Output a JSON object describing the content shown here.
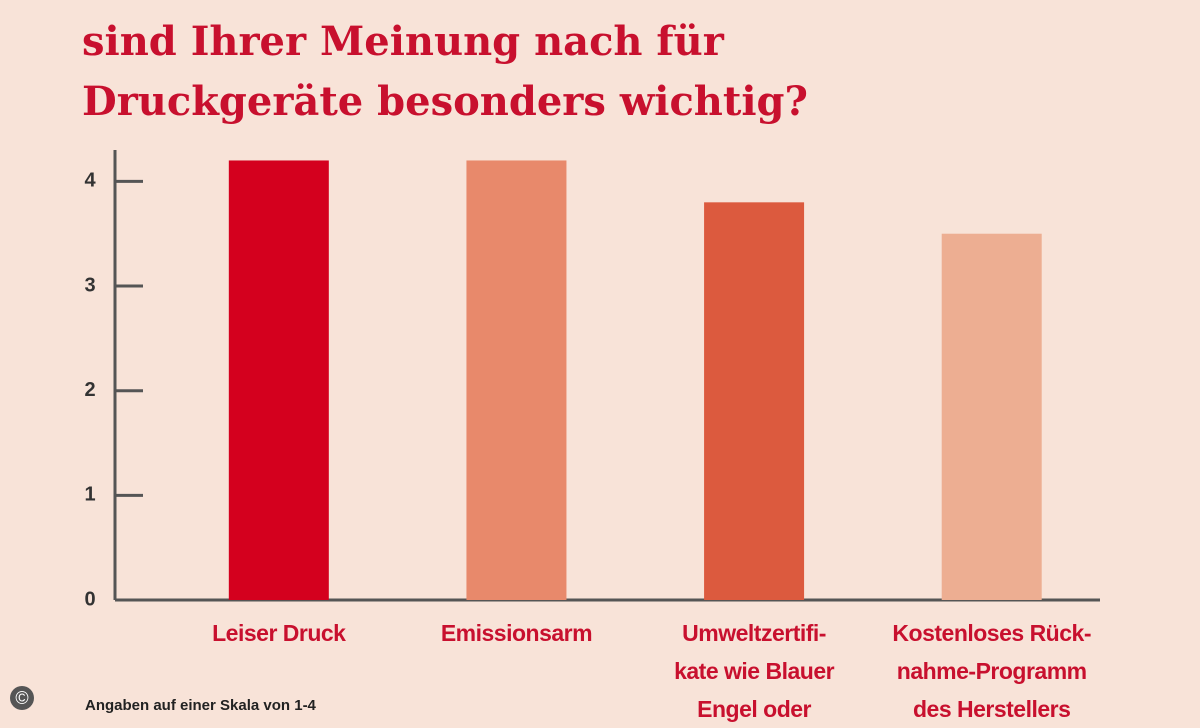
{
  "chart_data": {
    "type": "bar",
    "title": "sind Ihrer Meinung nach für\nDruckgeräte besonders wichtig?",
    "categories": [
      "Leiser Druck",
      "Emissionsarm",
      "Umweltzertifi-\nkate wie Blauer\nEngel oder",
      "Kostenloses Rück-\nnahme-Programm\ndes Herstellers"
    ],
    "values": [
      4.2,
      4.2,
      3.8,
      3.5
    ],
    "colors": [
      "#d4001e",
      "#e8896b",
      "#dc5a3e",
      "#edae92"
    ],
    "ylim": [
      0,
      4.3
    ],
    "yticks": [
      0,
      1,
      2,
      3,
      4
    ],
    "note": "Angaben auf einer Skala von 1-4",
    "copyright": "©"
  }
}
